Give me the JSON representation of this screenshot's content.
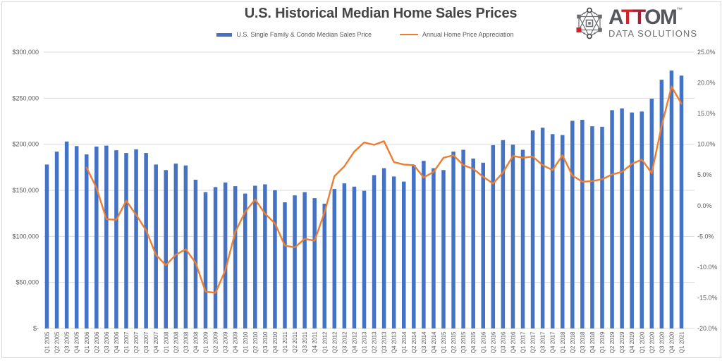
{
  "title": "U.S. Historical Median Home Sales Prices",
  "logo": {
    "name_gray_start": "A",
    "name_red": "T",
    "name_darkred": "T",
    "name_gray_end": "OM",
    "trademark": "™",
    "subtitle": "DATA SOLUTIONS"
  },
  "legend": {
    "bar_label": "U.S. Single Family & Condo Median Sales Price",
    "line_label": "Annual Home Price Appreciation"
  },
  "colors": {
    "bar": "#4472C4",
    "line": "#ED7D31",
    "grid": "#D9D9D9",
    "axis_text": "#595959"
  },
  "chart_data": {
    "type": "bar",
    "subtype": "combo-bar-line",
    "title": "U.S. Historical Median Home Sales Prices",
    "grid": true,
    "legend_position": "top",
    "categories": [
      "Q1 2005",
      "Q2 2005",
      "Q3 2005",
      "Q4 2005",
      "Q1 2006",
      "Q2 2006",
      "Q3 2006",
      "Q4 2006",
      "Q1 2007",
      "Q2 2007",
      "Q3 2007",
      "Q4 2007",
      "Q1 2008",
      "Q2 2008",
      "Q3 2008",
      "Q4 2008",
      "Q1 2009",
      "Q2 2009",
      "Q3 2009",
      "Q4 2009",
      "Q1 2010",
      "Q2 2010",
      "Q3 2010",
      "Q4 2010",
      "Q1 2011",
      "Q2 2011",
      "Q3 2011",
      "Q4 2011",
      "Q1 2012",
      "Q2 2012",
      "Q3 2012",
      "Q4 2012",
      "Q1 2013",
      "Q2 2013",
      "Q3 2013",
      "Q4 2013",
      "Q1 2014",
      "Q2 2014",
      "Q3 2014",
      "Q4 2014",
      "Q1 2015",
      "Q2 2015",
      "Q3 2015",
      "Q4 2015",
      "Q1 2016",
      "Q2 2016",
      "Q3 2016",
      "Q4 2016",
      "Q1 2017",
      "Q2 2017",
      "Q3 2017",
      "Q4 2017",
      "Q1 2018",
      "Q2 2018",
      "Q3 2018",
      "Q4 2018",
      "Q1 2019",
      "Q2 2019",
      "Q3 2019",
      "Q4 2019",
      "Q1 2020",
      "Q2 2020",
      "Q3 2020",
      "Q4 2020",
      "Q1 2021"
    ],
    "series": [
      {
        "name": "U.S. Single Family & Condo Median Sales Price",
        "type": "bar",
        "axis": "left",
        "color": "#4472C4",
        "values": [
          178000,
          192000,
          203000,
          198000,
          189000,
          197500,
          198500,
          193500,
          190500,
          194500,
          190500,
          178000,
          172000,
          179000,
          177000,
          161500,
          148000,
          153500,
          158500,
          154500,
          146500,
          155000,
          156500,
          150000,
          137000,
          144500,
          148000,
          141500,
          135500,
          151500,
          157500,
          154000,
          149500,
          166500,
          174000,
          165000,
          159500,
          177500,
          182000,
          174000,
          172000,
          192000,
          194000,
          184500,
          180000,
          199000,
          204500,
          199500,
          194000,
          215000,
          218000,
          211000,
          210000,
          225500,
          226500,
          219500,
          219000,
          237000,
          239000,
          234500,
          235500,
          249500,
          270000,
          280000,
          274500
        ]
      },
      {
        "name": "Annual Home Price Appreciation",
        "type": "line",
        "axis": "right",
        "color": "#ED7D31",
        "values": [
          null,
          null,
          null,
          null,
          6.2,
          2.9,
          -2.2,
          -2.3,
          0.8,
          -1.5,
          -4.0,
          -8.0,
          -9.7,
          -8.0,
          -7.1,
          -9.3,
          -14.0,
          -14.2,
          -10.5,
          -4.3,
          -1.0,
          1.0,
          -1.3,
          -2.9,
          -6.5,
          -6.8,
          -5.4,
          -5.7,
          -1.1,
          4.8,
          6.4,
          8.8,
          10.3,
          9.9,
          10.5,
          7.1,
          6.7,
          6.6,
          4.6,
          5.5,
          7.8,
          8.2,
          6.6,
          6.0,
          4.7,
          3.6,
          5.4,
          8.1,
          7.8,
          8.0,
          6.6,
          5.8,
          8.2,
          4.9,
          3.9,
          4.0,
          4.3,
          5.1,
          5.5,
          6.8,
          7.5,
          5.3,
          13.0,
          19.4,
          16.6
        ]
      }
    ],
    "left_axis": {
      "min": 0,
      "max": 300000,
      "ticks": [
        "$300,000",
        "$250,000",
        "$200,000",
        "$150,000",
        "$100,000",
        "$50,000",
        "$-"
      ]
    },
    "right_axis": {
      "min": -20,
      "max": 25,
      "ticks": [
        "25.0%",
        "20.0%",
        "15.0%",
        "10.0%",
        "5.0%",
        "0.0%",
        "-5.0%",
        "-10.0%",
        "-15.0%",
        "-20.0%"
      ]
    }
  }
}
